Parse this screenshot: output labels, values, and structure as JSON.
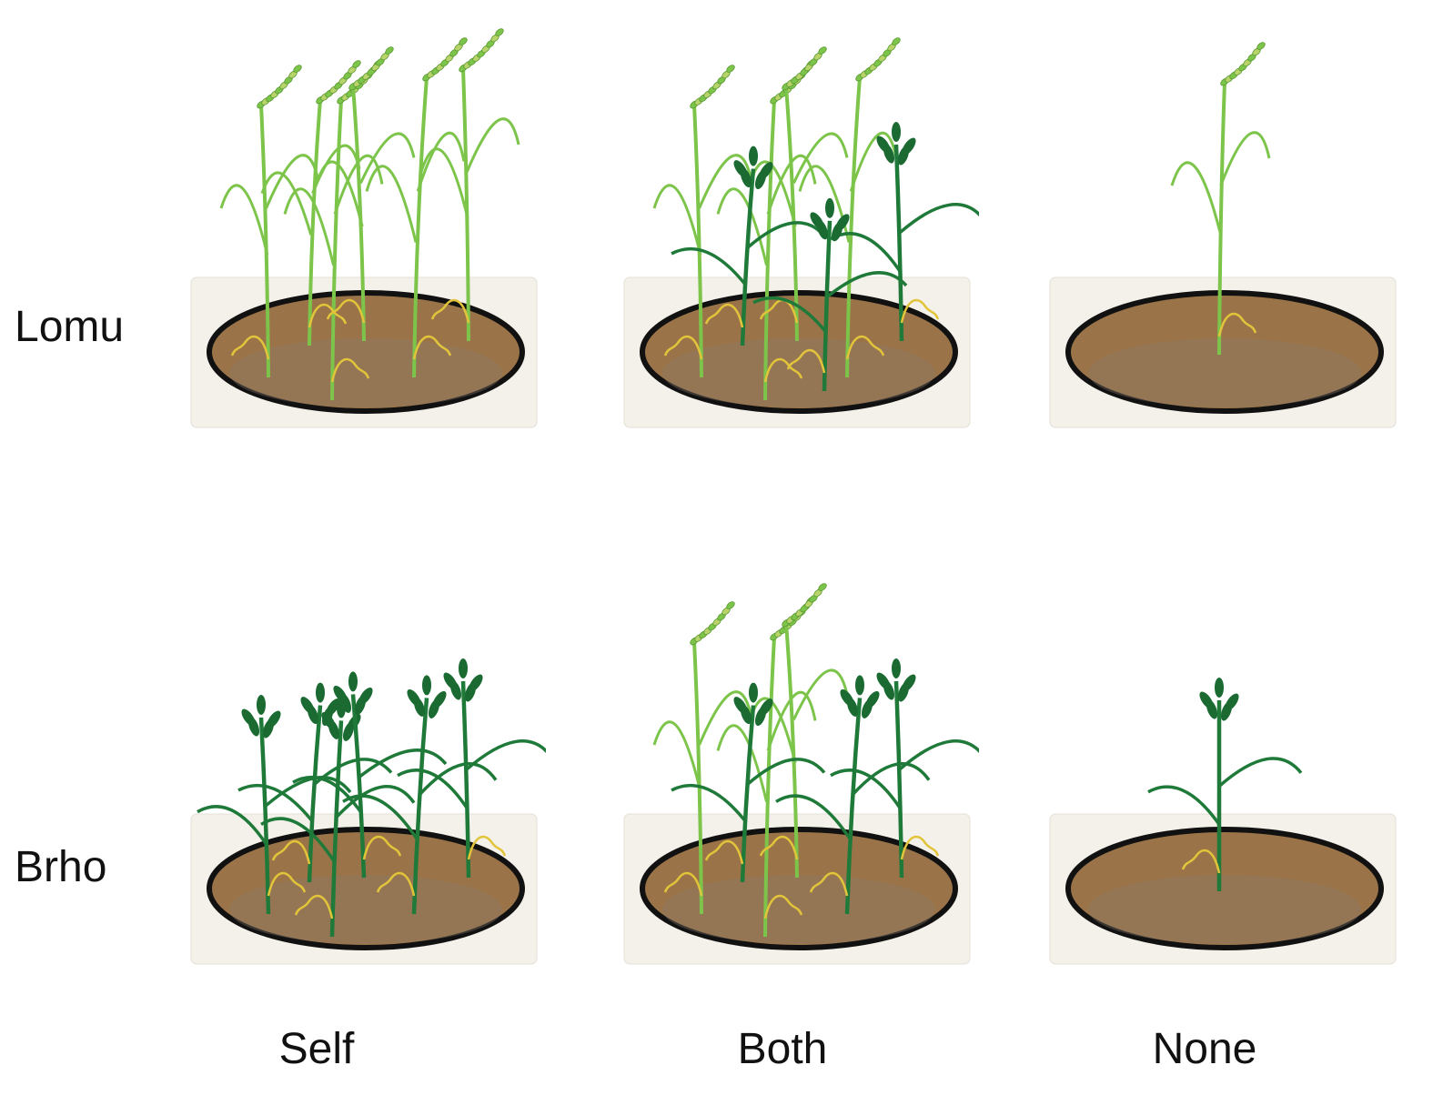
{
  "rows": [
    {
      "label": "Lomu",
      "key": "lomu"
    },
    {
      "label": "Brho",
      "key": "brho"
    }
  ],
  "columns": [
    {
      "label": "Self"
    },
    {
      "label": "Both"
    },
    {
      "label": "None"
    }
  ],
  "panels": [
    {
      "row": "Lomu",
      "column": "Self",
      "lomu_plants": 6,
      "brho_plants": 0
    },
    {
      "row": "Lomu",
      "column": "Both",
      "lomu_plants": 4,
      "brho_plants": 3
    },
    {
      "row": "Lomu",
      "column": "None",
      "lomu_plants": 1,
      "brho_plants": 0
    },
    {
      "row": "Brho",
      "column": "Self",
      "lomu_plants": 0,
      "brho_plants": 6
    },
    {
      "row": "Brho",
      "column": "Both",
      "lomu_plants": 3,
      "brho_plants": 3
    },
    {
      "row": "Brho",
      "column": "None",
      "lomu_plants": 0,
      "brho_plants": 1
    }
  ],
  "colors": {
    "lomu_stem": "#7cc44a",
    "lomu_spike": "#b8d36a",
    "brho_stem": "#1f7a3a",
    "brho_head": "#1a6a32",
    "root": "#e2c43a",
    "soil": "#9a7448",
    "soil_rim": "#111111",
    "tray": "#f4f1ea"
  }
}
